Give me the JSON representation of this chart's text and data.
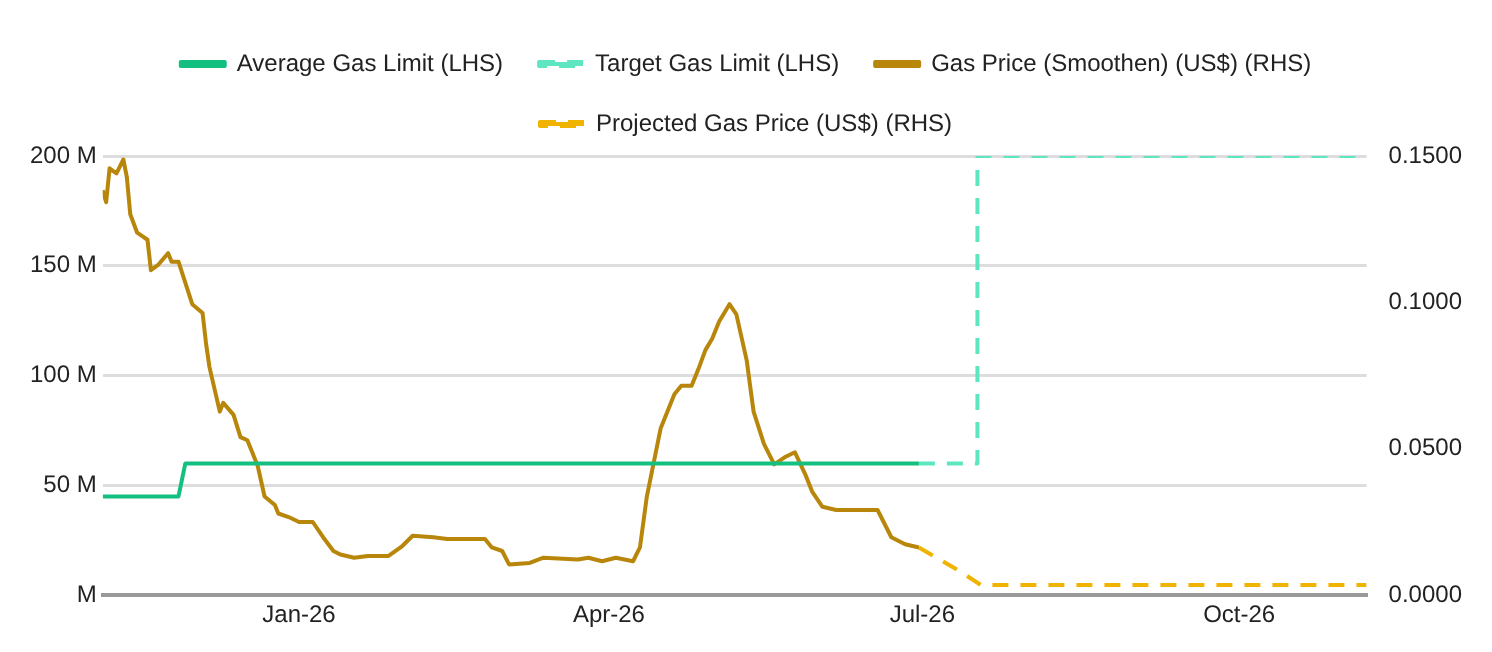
{
  "chart_data": {
    "type": "line",
    "xlim": [
      "2025-11-05",
      "2026-11-07"
    ],
    "xticks": [
      {
        "value": "2026-01-01",
        "label": "Jan-26"
      },
      {
        "value": "2026-04-01",
        "label": "Apr-26"
      },
      {
        "value": "2026-07-01",
        "label": "Jul-26"
      },
      {
        "value": "2026-10-01",
        "label": "Oct-26"
      }
    ],
    "ylim": [
      0,
      200000000
    ],
    "yticks": [
      {
        "value": 0,
        "label": "M"
      },
      {
        "value": 50000000,
        "label": "50 M"
      },
      {
        "value": 100000000,
        "label": "100 M"
      },
      {
        "value": 150000000,
        "label": "150 M"
      },
      {
        "value": 200000000,
        "label": "200 M"
      }
    ],
    "y2lim": [
      0,
      0.15
    ],
    "y2ticks": [
      {
        "value": 0,
        "label": "0.0000"
      },
      {
        "value": 0.05,
        "label": "0.0500"
      },
      {
        "value": 0.1,
        "label": "0.1000"
      },
      {
        "value": 0.15,
        "label": "0.1500"
      }
    ],
    "grid": "y",
    "legend": "top",
    "marker": "none",
    "series": [
      {
        "name": "Average Gas Limit (LHS)",
        "color": "#13c07f",
        "line_style": "solid",
        "x": [
          "2025-11-05",
          "2025-11-27",
          "2025-11-29",
          "2026-06-30"
        ],
        "values": [
          45000000,
          45000000,
          60000000,
          60000000
        ]
      },
      {
        "name": "Target Gas Limit (LHS)",
        "color": "#5ee6c0",
        "line_style": "dashed",
        "x": [
          "2026-06-30",
          "2026-07-17",
          "2026-07-17",
          "2026-11-07"
        ],
        "values": [
          60000000,
          60000000,
          200000000,
          200000000
        ]
      },
      {
        "name": "Gas Price (Smoothen) (US$) (RHS)",
        "color": "#b8860b",
        "line_style": "solid",
        "axis": "y2",
        "x": [
          "2025-11-05",
          "2025-11-06",
          "2025-11-07",
          "2025-11-09",
          "2025-11-11",
          "2025-11-12",
          "2025-11-13",
          "2025-11-15",
          "2025-11-18",
          "2025-11-19",
          "2025-11-21",
          "2025-11-24",
          "2025-11-25",
          "2025-11-27",
          "2025-12-01",
          "2025-12-04",
          "2025-12-05",
          "2025-12-06",
          "2025-12-09",
          "2025-12-10",
          "2025-12-13",
          "2025-12-15",
          "2025-12-17",
          "2025-12-20",
          "2025-12-22",
          "2025-12-25",
          "2025-12-26",
          "2025-12-29",
          "2026-01-01",
          "2026-01-05",
          "2026-01-08",
          "2026-01-11",
          "2026-01-13",
          "2026-01-17",
          "2026-01-21",
          "2026-01-27",
          "2026-01-31",
          "2026-02-03",
          "2026-02-09",
          "2026-02-13",
          "2026-02-20",
          "2026-02-24",
          "2026-02-26",
          "2026-03-01",
          "2026-03-03",
          "2026-03-09",
          "2026-03-13",
          "2026-03-23",
          "2026-03-26",
          "2026-03-30",
          "2026-04-03",
          "2026-04-08",
          "2026-04-10",
          "2026-04-12",
          "2026-04-14",
          "2026-04-16",
          "2026-04-20",
          "2026-04-22",
          "2026-04-25",
          "2026-04-27",
          "2026-04-29",
          "2026-05-01",
          "2026-05-03",
          "2026-05-06",
          "2026-05-08",
          "2026-05-11",
          "2026-05-13",
          "2026-05-16",
          "2026-05-19",
          "2026-05-22",
          "2026-05-25",
          "2026-05-28",
          "2026-05-30",
          "2026-06-02",
          "2026-06-06",
          "2026-06-14",
          "2026-06-18",
          "2026-06-22",
          "2026-06-26",
          "2026-06-30"
        ],
        "values": [
          0.1383,
          0.1342,
          0.1458,
          0.1441,
          0.1488,
          0.1429,
          0.1301,
          0.1238,
          0.1214,
          0.111,
          0.1127,
          0.1168,
          0.1139,
          0.1139,
          0.0994,
          0.0964,
          0.086,
          0.0779,
          0.0627,
          0.0657,
          0.0616,
          0.054,
          0.0529,
          0.0442,
          0.0337,
          0.0308,
          0.0279,
          0.0267,
          0.025,
          0.025,
          0.0198,
          0.0151,
          0.0139,
          0.0128,
          0.0134,
          0.0134,
          0.0168,
          0.0203,
          0.0198,
          0.0192,
          0.0192,
          0.0192,
          0.0163,
          0.0151,
          0.0105,
          0.011,
          0.0128,
          0.0122,
          0.0128,
          0.0116,
          0.0128,
          0.0116,
          0.0163,
          0.0337,
          0.0453,
          0.0569,
          0.0686,
          0.0715,
          0.0715,
          0.0773,
          0.0837,
          0.0877,
          0.0935,
          0.0994,
          0.0959,
          0.0802,
          0.0627,
          0.0517,
          0.0447,
          0.0471,
          0.0488,
          0.0413,
          0.0354,
          0.0302,
          0.0291,
          0.0291,
          0.0291,
          0.0198,
          0.0174,
          0.0163
        ]
      },
      {
        "name": "Projected Gas Price (US$) (RHS)",
        "color": "#f0b400",
        "line_style": "dashed",
        "axis": "y2",
        "x": [
          "2026-06-30",
          "2026-07-12",
          "2026-07-18",
          "2026-11-07"
        ],
        "values": [
          0.0163,
          0.0081,
          0.0035,
          0.0035
        ]
      }
    ]
  }
}
